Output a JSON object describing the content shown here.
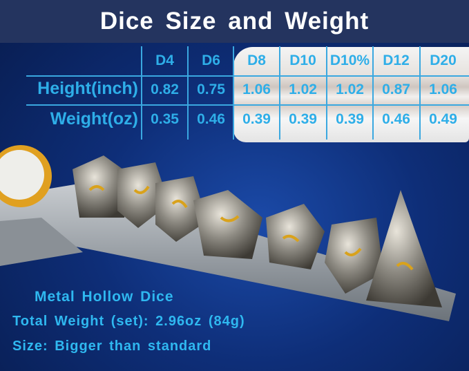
{
  "title": "Dice Size and Weight",
  "table": {
    "columns": [
      "D4",
      "D6",
      "D8",
      "D10",
      "D10%",
      "D12",
      "D20"
    ],
    "rows": [
      {
        "label": "Height(inch)",
        "values": [
          "0.82",
          "0.75",
          "1.06",
          "1.02",
          "1.02",
          "0.87",
          "1.06"
        ]
      },
      {
        "label": "Weight(oz)",
        "values": [
          "0.35",
          "0.46",
          "0.39",
          "0.39",
          "0.39",
          "0.46",
          "0.49"
        ]
      }
    ]
  },
  "captions": {
    "line1": "Metal Hollow Dice",
    "line2": "Total Weight (set): 2.96oz (84g)",
    "line3": "Size: Bigger than standard"
  },
  "colors": {
    "accent": "#2eaee8",
    "banner": "#24345f",
    "background": "#0e2e78",
    "dice_gold": "#d9a21c"
  }
}
